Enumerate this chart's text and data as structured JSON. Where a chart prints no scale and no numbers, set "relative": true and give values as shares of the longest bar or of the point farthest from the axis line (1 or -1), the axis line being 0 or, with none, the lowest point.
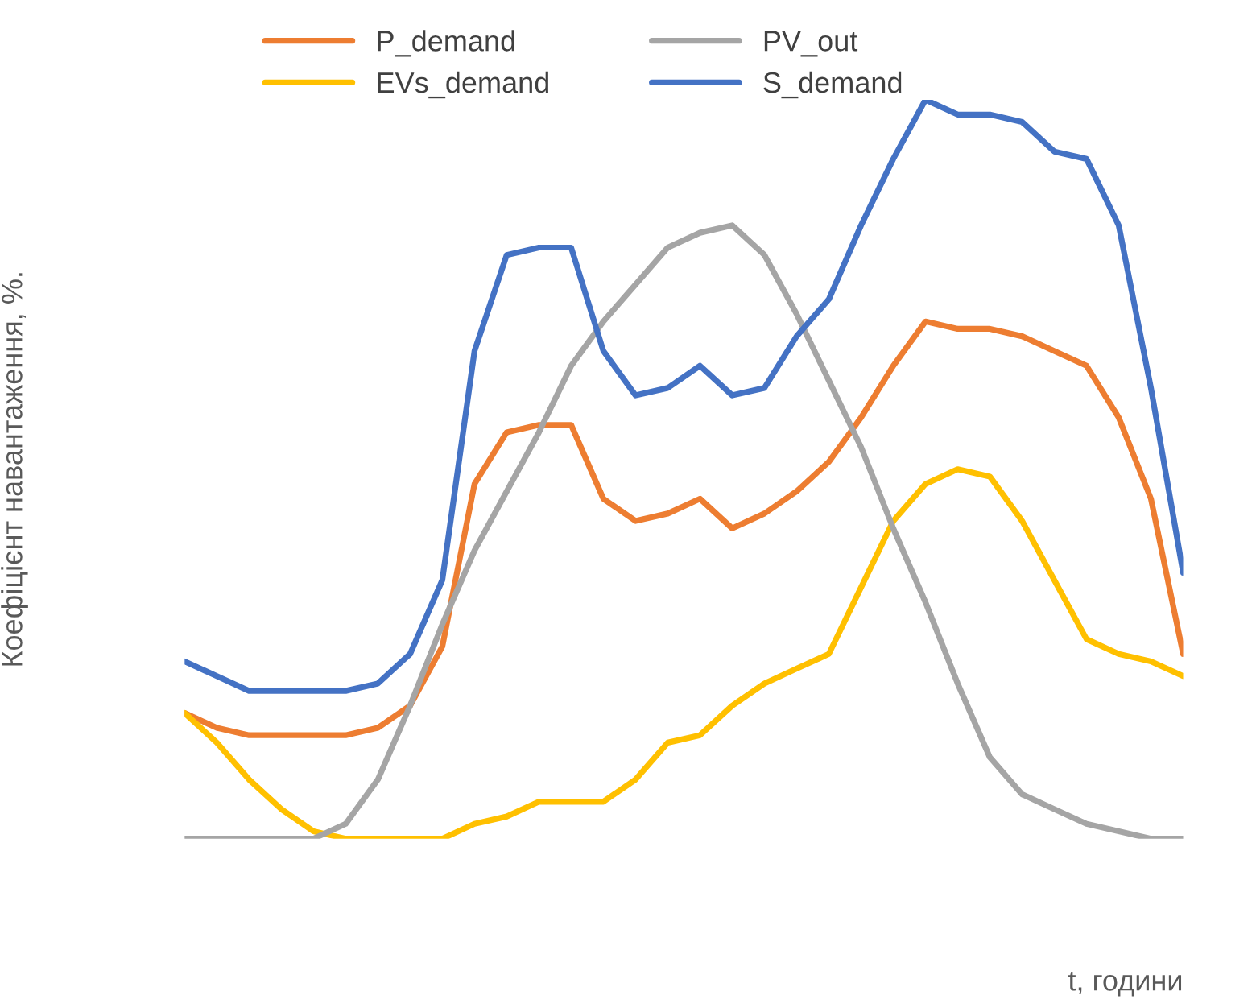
{
  "chart_data": {
    "type": "line",
    "relative": true,
    "xlabel": "t, години",
    "ylabel": "Коефіцієнт навантаження, %.",
    "legend": "top",
    "grid": false,
    "categories": [
      null,
      null,
      null,
      null,
      null,
      null,
      null,
      null,
      null,
      null,
      null,
      null,
      null,
      null,
      null,
      null,
      null,
      null,
      null,
      null,
      null,
      null,
      null,
      null,
      null,
      null,
      null,
      null,
      null,
      null,
      null,
      null
    ],
    "series": [
      {
        "name": "P_demand",
        "color": "#ed7d31",
        "values": [
          0.17,
          0.15,
          0.14,
          0.14,
          0.14,
          0.14,
          0.15,
          0.18,
          0.26,
          0.48,
          0.55,
          0.56,
          0.56,
          0.46,
          0.43,
          0.44,
          0.46,
          0.42,
          0.44,
          0.47,
          0.51,
          0.57,
          0.64,
          0.7,
          0.69,
          0.69,
          0.68,
          0.66,
          0.64,
          0.57,
          0.46,
          0.25
        ]
      },
      {
        "name": "EVs_demand",
        "color": "#ffc000",
        "values": [
          0.17,
          0.13,
          0.08,
          0.04,
          0.01,
          0.0,
          0.0,
          0.0,
          0.0,
          0.02,
          0.03,
          0.05,
          0.05,
          0.05,
          0.08,
          0.13,
          0.14,
          0.18,
          0.21,
          0.23,
          0.25,
          0.34,
          0.43,
          0.48,
          0.5,
          0.49,
          0.43,
          0.35,
          0.27,
          0.25,
          0.24,
          0.22
        ]
      },
      {
        "name": "PV_out",
        "color": "#a5a5a5",
        "values": [
          0.0,
          0.0,
          0.0,
          0.0,
          0.0,
          0.02,
          0.08,
          0.18,
          0.29,
          0.39,
          0.47,
          0.55,
          0.64,
          0.7,
          0.75,
          0.8,
          0.82,
          0.83,
          0.79,
          0.71,
          0.62,
          0.53,
          0.42,
          0.32,
          0.21,
          0.11,
          0.06,
          0.04,
          0.02,
          0.01,
          0.0,
          0.0
        ]
      },
      {
        "name": "S_demand",
        "color": "#4472c4",
        "values": [
          0.24,
          0.22,
          0.2,
          0.2,
          0.2,
          0.2,
          0.21,
          0.25,
          0.35,
          0.66,
          0.79,
          0.8,
          0.8,
          0.66,
          0.6,
          0.61,
          0.64,
          0.6,
          0.61,
          0.68,
          0.73,
          0.83,
          0.92,
          1.0,
          0.98,
          0.98,
          0.97,
          0.93,
          0.92,
          0.83,
          0.61,
          0.36
        ]
      }
    ]
  }
}
